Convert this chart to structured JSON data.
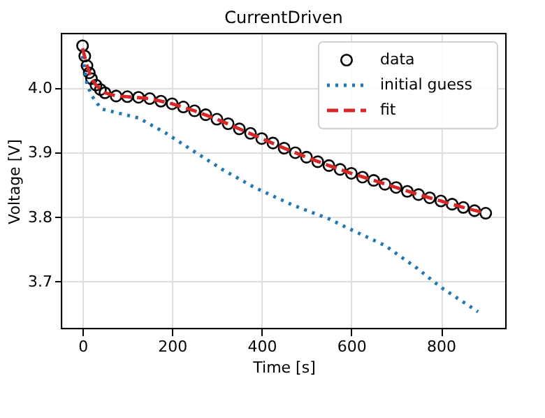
{
  "chart_data": {
    "type": "line",
    "title": "CurrentDriven",
    "xlabel": "Time [s]",
    "ylabel": "Voltage [V]",
    "xlim": [
      -47,
      945
    ],
    "ylim": [
      3.627,
      4.085
    ],
    "xticks": [
      0,
      200,
      400,
      600,
      800
    ],
    "yticks": [
      3.7,
      3.8,
      3.9,
      {
        "value": 4,
        "label": "4.0"
      }
    ],
    "grid": true,
    "legend": "top right",
    "series": [
      {
        "name": "data",
        "type": "scatter",
        "marker": "circle",
        "color": "#000000",
        "x": [
          0,
          5,
          10,
          15,
          20,
          30,
          40,
          50,
          75,
          100,
          125,
          150,
          175,
          200,
          225,
          250,
          275,
          300,
          325,
          350,
          375,
          400,
          425,
          450,
          475,
          500,
          525,
          550,
          575,
          600,
          625,
          650,
          675,
          700,
          725,
          750,
          775,
          800,
          825,
          850,
          875,
          900
        ],
        "values": [
          4.066,
          4.05,
          4.035,
          4.024,
          4.015,
          4.005,
          3.998,
          3.993,
          3.988,
          3.987,
          3.986,
          3.984,
          3.98,
          3.976,
          3.971,
          3.965,
          3.959,
          3.952,
          3.945,
          3.937,
          3.93,
          3.922,
          3.915,
          3.907,
          3.9,
          3.893,
          3.886,
          3.88,
          3.874,
          3.868,
          3.862,
          3.857,
          3.851,
          3.846,
          3.84,
          3.835,
          3.83,
          3.825,
          3.82,
          3.815,
          3.81,
          3.806
        ]
      },
      {
        "name": "initial guess",
        "line_style": "dotted",
        "color": "#1f77b4",
        "x": [
          0,
          10,
          21,
          42,
          83,
          125,
          187,
          249,
          312,
          384,
          468,
          551,
          592,
          675,
          748,
          800,
          883
        ],
        "values": [
          4.05,
          4.006,
          3.988,
          3.968,
          3.961,
          3.954,
          3.93,
          3.902,
          3.874,
          3.846,
          3.819,
          3.797,
          3.783,
          3.756,
          3.72,
          3.691,
          3.653
        ]
      },
      {
        "name": "fit",
        "line_style": "dashed",
        "color": "#d62728",
        "x": [
          0,
          10,
          20,
          30,
          50,
          75,
          100,
          150,
          200,
          250,
          300,
          350,
          400,
          450,
          500,
          550,
          600,
          650,
          700,
          750,
          800,
          850,
          900
        ],
        "values": [
          4.062,
          4.035,
          4.015,
          4.005,
          3.993,
          3.988,
          3.987,
          3.984,
          3.976,
          3.965,
          3.952,
          3.937,
          3.922,
          3.907,
          3.893,
          3.88,
          3.868,
          3.857,
          3.846,
          3.835,
          3.825,
          3.815,
          3.806
        ]
      }
    ]
  }
}
